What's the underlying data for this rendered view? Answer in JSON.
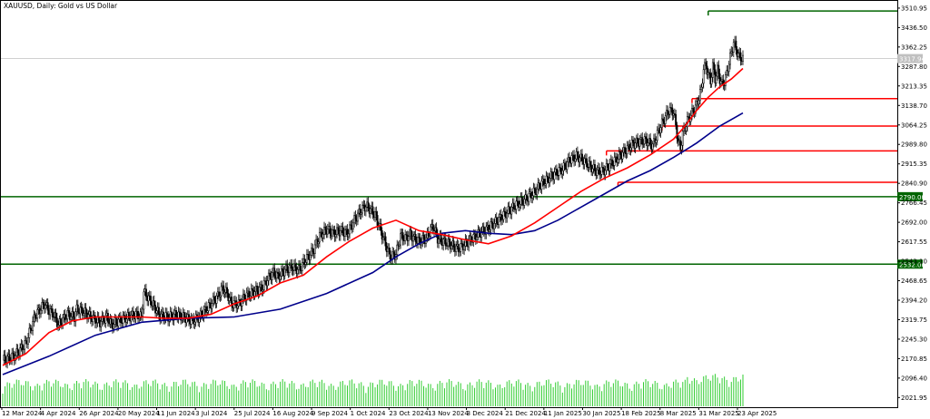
{
  "title": "XAUUSD, Daily:  Gold vs US Dollar",
  "chart_data": {
    "type": "candlestick",
    "symbol": "XAUUSD",
    "timeframe": "Daily",
    "description": "Gold vs US Dollar",
    "y_ticks": [
      "3510.95",
      "3436.50",
      "3362.25",
      "3287.80",
      "3213.35",
      "3138.70",
      "3064.25",
      "2989.80",
      "2915.35",
      "2840.90",
      "2766.45",
      "2692.00",
      "2617.55",
      "2543.10",
      "2468.65",
      "2394.20",
      "2319.75",
      "2245.30",
      "2170.85",
      "2096.40",
      "2021.95"
    ],
    "ylim": [
      1985,
      3535
    ],
    "x_ticks": [
      "12 Mar 2024",
      "4 Apr 2024",
      "26 Apr 2024",
      "20 May 2024",
      "11 Jun 2024",
      "3 Jul 2024",
      "25 Jul 2024",
      "16 Aug 2024",
      "9 Sep 2024",
      "1 Oct 2024",
      "23 Oct 2024",
      "13 Nov 2024",
      "3 Dec 2024",
      "21 Dec 2024",
      "11 Jan 2025",
      "30 Jan 2025",
      "18 Feb 2025",
      "8 Mar 2025",
      "31 Mar 2025",
      "23 Apr 2025"
    ],
    "close_path": [
      [
        0,
        2165
      ],
      [
        10,
        2180
      ],
      [
        20,
        2230
      ],
      [
        28,
        2335
      ],
      [
        36,
        2380
      ],
      [
        40,
        2355
      ],
      [
        44,
        2340
      ],
      [
        48,
        2300
      ],
      [
        56,
        2340
      ],
      [
        62,
        2330
      ],
      [
        64,
        2360
      ],
      [
        70,
        2350
      ],
      [
        76,
        2330
      ],
      [
        80,
        2320
      ],
      [
        84,
        2310
      ],
      [
        90,
        2330
      ],
      [
        94,
        2300
      ],
      [
        100,
        2315
      ],
      [
        108,
        2330
      ],
      [
        116,
        2340
      ],
      [
        120,
        2330
      ],
      [
        122,
        2425
      ],
      [
        128,
        2390
      ],
      [
        136,
        2335
      ],
      [
        144,
        2330
      ],
      [
        150,
        2340
      ],
      [
        156,
        2330
      ],
      [
        164,
        2315
      ],
      [
        170,
        2330
      ],
      [
        176,
        2360
      ],
      [
        182,
        2390
      ],
      [
        186,
        2410
      ],
      [
        190,
        2440
      ],
      [
        194,
        2420
      ],
      [
        198,
        2380
      ],
      [
        204,
        2380
      ],
      [
        210,
        2410
      ],
      [
        216,
        2425
      ],
      [
        224,
        2440
      ],
      [
        230,
        2480
      ],
      [
        234,
        2500
      ],
      [
        238,
        2485
      ],
      [
        244,
        2510
      ],
      [
        250,
        2520
      ],
      [
        256,
        2510
      ],
      [
        262,
        2550
      ],
      [
        268,
        2580
      ],
      [
        274,
        2640
      ],
      [
        280,
        2665
      ],
      [
        286,
        2650
      ],
      [
        292,
        2660
      ],
      [
        298,
        2650
      ],
      [
        304,
        2700
      ],
      [
        310,
        2740
      ],
      [
        314,
        2755
      ],
      [
        318,
        2740
      ],
      [
        322,
        2720
      ],
      [
        326,
        2670
      ],
      [
        330,
        2620
      ],
      [
        334,
        2570
      ],
      [
        336,
        2560
      ],
      [
        340,
        2570
      ],
      [
        344,
        2640
      ],
      [
        348,
        2630
      ],
      [
        352,
        2645
      ],
      [
        356,
        2630
      ],
      [
        360,
        2620
      ],
      [
        366,
        2630
      ],
      [
        372,
        2680
      ],
      [
        376,
        2630
      ],
      [
        380,
        2620
      ],
      [
        386,
        2610
      ],
      [
        394,
        2590
      ],
      [
        400,
        2610
      ],
      [
        406,
        2630
      ],
      [
        412,
        2650
      ],
      [
        420,
        2670
      ],
      [
        428,
        2700
      ],
      [
        436,
        2730
      ],
      [
        444,
        2760
      ],
      [
        452,
        2780
      ],
      [
        460,
        2810
      ],
      [
        466,
        2840
      ],
      [
        472,
        2860
      ],
      [
        478,
        2880
      ],
      [
        484,
        2895
      ],
      [
        490,
        2930
      ],
      [
        496,
        2945
      ],
      [
        502,
        2930
      ],
      [
        508,
        2905
      ],
      [
        514,
        2885
      ],
      [
        520,
        2890
      ],
      [
        526,
        2915
      ],
      [
        532,
        2940
      ],
      [
        538,
        2965
      ],
      [
        544,
        2990
      ],
      [
        550,
        3000
      ],
      [
        556,
        3005
      ],
      [
        562,
        2985
      ],
      [
        566,
        3030
      ],
      [
        570,
        3070
      ],
      [
        576,
        3120
      ],
      [
        580,
        3115
      ],
      [
        582,
        3060
      ],
      [
        584,
        3000
      ],
      [
        586,
        2975
      ],
      [
        588,
        3030
      ],
      [
        592,
        3080
      ],
      [
        596,
        3110
      ],
      [
        600,
        3140
      ],
      [
        604,
        3200
      ],
      [
        606,
        3280
      ],
      [
        608,
        3290
      ],
      [
        612,
        3230
      ],
      [
        614,
        3290
      ],
      [
        616,
        3240
      ],
      [
        618,
        3275
      ],
      [
        620,
        3240
      ],
      [
        622,
        3220
      ],
      [
        624,
        3230
      ],
      [
        626,
        3260
      ],
      [
        628,
        3305
      ],
      [
        630,
        3340
      ],
      [
        632,
        3380
      ],
      [
        636,
        3330
      ],
      [
        640,
        3315
      ]
    ],
    "ma_fast": [
      [
        0,
        2145
      ],
      [
        20,
        2190
      ],
      [
        40,
        2270
      ],
      [
        60,
        2315
      ],
      [
        80,
        2330
      ],
      [
        100,
        2330
      ],
      [
        120,
        2330
      ],
      [
        140,
        2325
      ],
      [
        160,
        2325
      ],
      [
        180,
        2340
      ],
      [
        200,
        2380
      ],
      [
        220,
        2410
      ],
      [
        240,
        2460
      ],
      [
        260,
        2490
      ],
      [
        280,
        2560
      ],
      [
        300,
        2620
      ],
      [
        320,
        2670
      ],
      [
        340,
        2700
      ],
      [
        360,
        2660
      ],
      [
        380,
        2645
      ],
      [
        400,
        2625
      ],
      [
        420,
        2610
      ],
      [
        440,
        2640
      ],
      [
        460,
        2690
      ],
      [
        480,
        2750
      ],
      [
        500,
        2810
      ],
      [
        520,
        2860
      ],
      [
        540,
        2900
      ],
      [
        560,
        2950
      ],
      [
        580,
        3010
      ],
      [
        590,
        3060
      ],
      [
        600,
        3120
      ],
      [
        610,
        3170
      ],
      [
        620,
        3210
      ],
      [
        630,
        3240
      ],
      [
        640,
        3280
      ]
    ],
    "ma_slow": [
      [
        0,
        2110
      ],
      [
        40,
        2180
      ],
      [
        80,
        2260
      ],
      [
        120,
        2310
      ],
      [
        160,
        2325
      ],
      [
        200,
        2330
      ],
      [
        240,
        2360
      ],
      [
        280,
        2420
      ],
      [
        320,
        2500
      ],
      [
        340,
        2560
      ],
      [
        360,
        2610
      ],
      [
        380,
        2650
      ],
      [
        400,
        2660
      ],
      [
        420,
        2650
      ],
      [
        440,
        2645
      ],
      [
        460,
        2660
      ],
      [
        480,
        2700
      ],
      [
        500,
        2750
      ],
      [
        520,
        2800
      ],
      [
        540,
        2850
      ],
      [
        560,
        2890
      ],
      [
        580,
        2940
      ],
      [
        600,
        2995
      ],
      [
        620,
        3060
      ],
      [
        640,
        3110
      ]
    ],
    "last_price": "3317.94",
    "hlines": [
      {
        "price": 2790.0,
        "color": "#006400",
        "label": "2790.00",
        "from": 0
      },
      {
        "price": 2532.0,
        "color": "#006400",
        "label": "2532.00",
        "from": 0
      },
      {
        "price": 3500.0,
        "color": "#006400",
        "label": "",
        "from": 610
      },
      {
        "price": 3165.0,
        "color": "#ff0000",
        "label": "",
        "from": 596
      },
      {
        "price": 3060.0,
        "color": "#ff0000",
        "label": "",
        "from": 570
      },
      {
        "price": 2965.0,
        "color": "#ff0000",
        "label": "",
        "from": 522
      },
      {
        "price": 2845.0,
        "color": "#ff0000",
        "label": "",
        "from": 532
      }
    ],
    "colors": {
      "candle": "#000000",
      "ma_fast": "#ff0000",
      "ma_slow": "#00008b",
      "volume": "#32cd32",
      "hline_green": "#006400",
      "hline_red": "#ff0000",
      "price_line": "#c0c0c0"
    },
    "grid": false
  }
}
